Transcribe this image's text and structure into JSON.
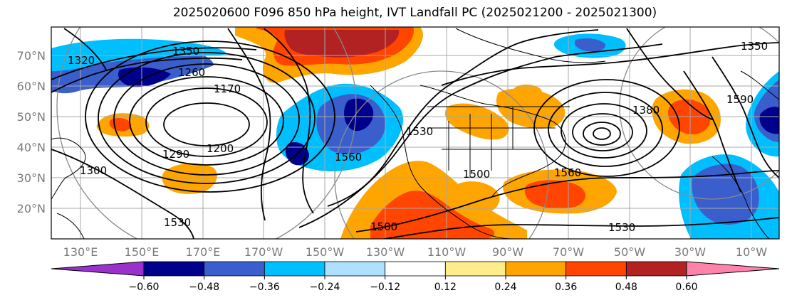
{
  "title": "2025020600 F096 850 hPa height, IVT Landfall PC (2025021200 - 2025021300)",
  "lat_labels": [
    "70°N",
    "60°N",
    "50°N",
    "40°N",
    "30°N",
    "20°N"
  ],
  "lon_labels": [
    "130°E",
    "150°E",
    "170°E",
    "170°W",
    "150°W",
    "130°W",
    "110°W",
    "90°W",
    "70°W",
    "50°W",
    "30°W",
    "10°W"
  ],
  "contour_labels": [
    "1350",
    "1260",
    "1170",
    "1290",
    "1200",
    "1300",
    "1560",
    "1500",
    "1530",
    "1380",
    "1560",
    "1500",
    "1530",
    "1590",
    "1350",
    "1320",
    "1530"
  ],
  "colorbar": {
    "ticks": [
      "−0.60",
      "−0.48",
      "−0.36",
      "−0.24",
      "−0.12",
      "0.12",
      "0.24",
      "0.36",
      "0.48",
      "0.60"
    ],
    "colors": [
      "#9932cc",
      "#00008b",
      "#3a5fcd",
      "#00bfff",
      "#b0e0ff",
      "#ffffff",
      "#ffec8b",
      "#ffa500",
      "#ff4500",
      "#b22222",
      "#ff82ab"
    ]
  },
  "colors": {
    "neg_strong": "#00008b",
    "neg_mid": "#3a5fcd",
    "neg_light": "#00bfff",
    "pos_light": "#ffec8b",
    "pos_mid": "#ffa500",
    "pos_strong": "#ff4500",
    "pos_max": "#b22222"
  }
}
